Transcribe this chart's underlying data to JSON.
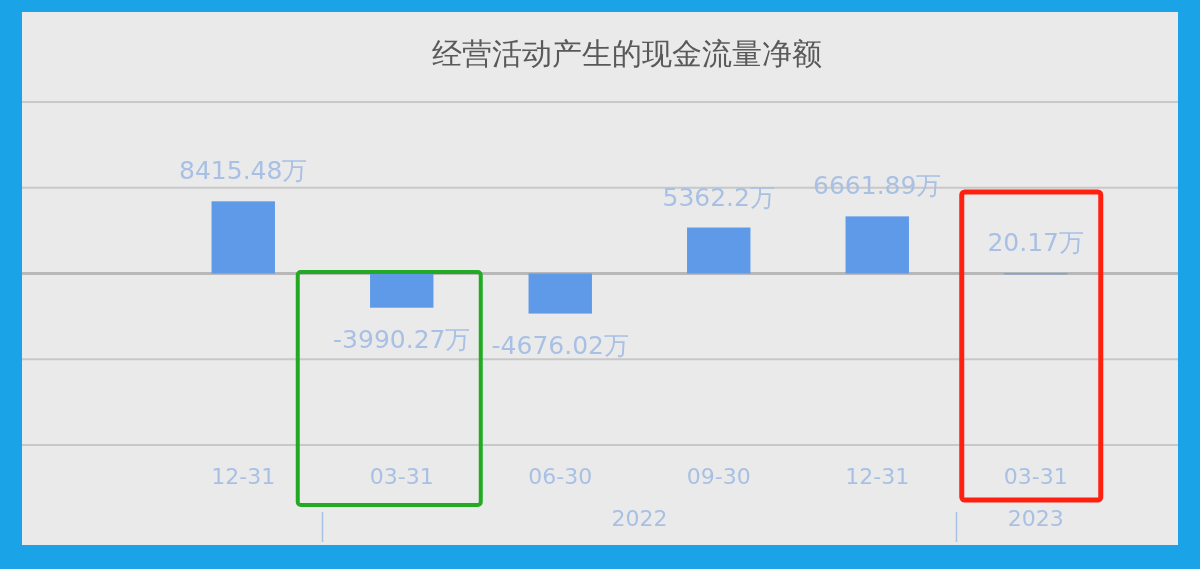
{
  "chart_data": {
    "type": "bar",
    "title": "经营活动产生的现金流量净额",
    "categories": [
      "12-31",
      "03-31",
      "06-30",
      "09-30",
      "12-31",
      "03-31"
    ],
    "values": [
      8415.48,
      -3990.27,
      -4676.02,
      5362.2,
      6661.89,
      20.17
    ],
    "value_labels": [
      "8415.48万",
      "-3990.27万",
      "-4676.02万",
      "5362.2万",
      "6661.89万",
      "20.17万"
    ],
    "color": "#5e9ae8",
    "ylim": [
      -20000,
      20000
    ],
    "yticks": [
      {
        "value": -20000,
        "label": null
      },
      {
        "value": -10000,
        "label": null
      },
      {
        "value": 0,
        "label": null
      },
      {
        "value": 10000,
        "label": null
      },
      {
        "value": 20000,
        "label": null
      }
    ],
    "grid": "y",
    "tick_labels": "x",
    "annotations": [
      "2022",
      "2023"
    ]
  }
}
